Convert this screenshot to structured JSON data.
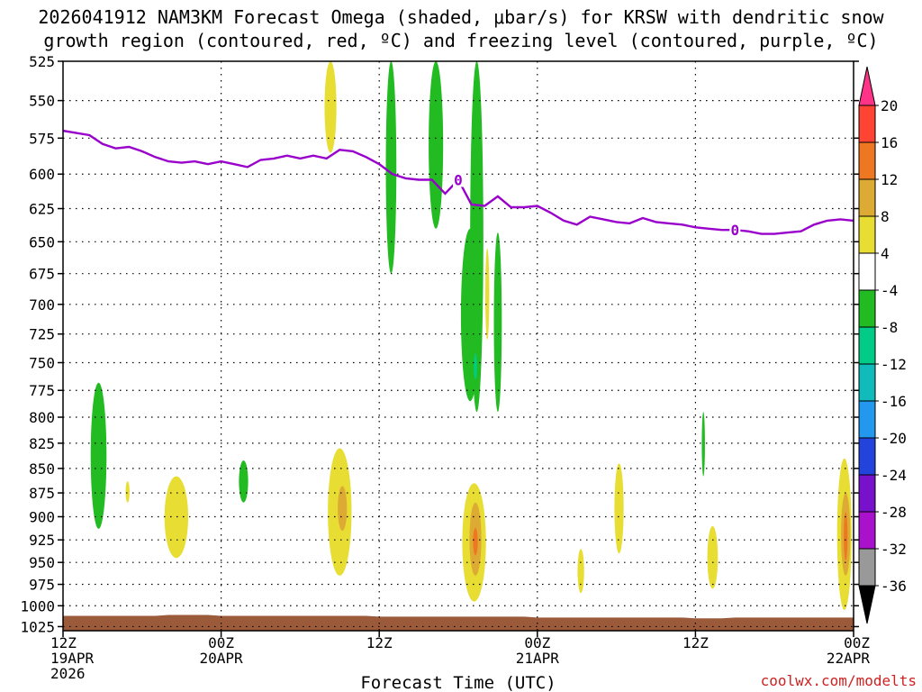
{
  "chart_data": {
    "type": "contour",
    "title_line1": "2026041912 NAM3KM Forecast Omega (shaded, μbar/s) for KRSW with dendritic snow",
    "title_line2": "growth region (contoured, red, ºC) and freezing level (contoured, purple, ºC)",
    "xlabel": "Forecast Time (UTC)",
    "credit": "coolwx.com/modelts",
    "xlim_hours": [
      0,
      60
    ],
    "ylim_mb": [
      525,
      1030
    ],
    "y_ticks": [
      525,
      550,
      575,
      600,
      625,
      650,
      675,
      700,
      725,
      750,
      775,
      800,
      825,
      850,
      875,
      900,
      925,
      950,
      975,
      1000,
      1025
    ],
    "x_ticks": [
      {
        "hour": 0,
        "l1": "12Z",
        "l2": "19APR",
        "l3": "2026"
      },
      {
        "hour": 12,
        "l1": "00Z",
        "l2": "20APR",
        "l3": ""
      },
      {
        "hour": 24,
        "l1": "12Z",
        "l2": "",
        "l3": ""
      },
      {
        "hour": 36,
        "l1": "00Z",
        "l2": "21APR",
        "l3": ""
      },
      {
        "hour": 48,
        "l1": "12Z",
        "l2": "",
        "l3": ""
      },
      {
        "hour": 60,
        "l1": "00Z",
        "l2": "22APR",
        "l3": ""
      }
    ],
    "colorbar": {
      "labels": [
        "20",
        "16",
        "12",
        "8",
        "4",
        "-4",
        "-8",
        "-12",
        "-16",
        "-20",
        "-24",
        "-28",
        "-32",
        "-36"
      ],
      "colors": [
        "#ff3388",
        "#ff4433",
        "#ee7722",
        "#ddaa33",
        "#e8dd33",
        "#ffffff",
        "#22bb22",
        "#00cc88",
        "#11bbbb",
        "#2299ee",
        "#2244dd",
        "#7711cc",
        "#aa11cc",
        "#999999",
        "#000000"
      ]
    },
    "freezing_level": {
      "label": "0",
      "color": "#9900cc",
      "label_points": [
        {
          "hour": 30,
          "mb": 604
        },
        {
          "hour": 51,
          "mb": 641
        }
      ],
      "points": [
        [
          0,
          570
        ],
        [
          2,
          573
        ],
        [
          3,
          579
        ],
        [
          4,
          582
        ],
        [
          5,
          581
        ],
        [
          6,
          584
        ],
        [
          7,
          588
        ],
        [
          8,
          591
        ],
        [
          9,
          592
        ],
        [
          10,
          591
        ],
        [
          11,
          593
        ],
        [
          12,
          591
        ],
        [
          13,
          593
        ],
        [
          14,
          595
        ],
        [
          15,
          590
        ],
        [
          16,
          589
        ],
        [
          17,
          587
        ],
        [
          18,
          589
        ],
        [
          19,
          587
        ],
        [
          20,
          589
        ],
        [
          21,
          583
        ],
        [
          22,
          584
        ],
        [
          23,
          588
        ],
        [
          24,
          593
        ],
        [
          25,
          600
        ],
        [
          26,
          603
        ],
        [
          27,
          604
        ],
        [
          28,
          604
        ],
        [
          29,
          614
        ],
        [
          30,
          604
        ],
        [
          31,
          622
        ],
        [
          32,
          623
        ],
        [
          33,
          616
        ],
        [
          34,
          624
        ],
        [
          35,
          624
        ],
        [
          36,
          623
        ],
        [
          37,
          628
        ],
        [
          38,
          634
        ],
        [
          39,
          637
        ],
        [
          40,
          631
        ],
        [
          41,
          633
        ],
        [
          42,
          635
        ],
        [
          43,
          636
        ],
        [
          44,
          632
        ],
        [
          45,
          635
        ],
        [
          46,
          636
        ],
        [
          47,
          637
        ],
        [
          48,
          639
        ],
        [
          49,
          640
        ],
        [
          50,
          641
        ],
        [
          51,
          641
        ],
        [
          52,
          642
        ],
        [
          53,
          644
        ],
        [
          54,
          644
        ],
        [
          55,
          643
        ],
        [
          56,
          642
        ],
        [
          57,
          637
        ],
        [
          58,
          634
        ],
        [
          59,
          633
        ],
        [
          60,
          634
        ]
      ]
    },
    "omega_regions": [
      {
        "name": "green-hr2",
        "value": "-4 to -8",
        "color": "#22bb22",
        "cx": 2.7,
        "top": 768,
        "bot": 913,
        "hw": 0.6
      },
      {
        "name": "yellow-hr5",
        "value": "4 to 8",
        "color": "#e8dd33",
        "cx": 4.9,
        "top": 863,
        "bot": 885,
        "hw": 0.15
      },
      {
        "name": "yellow-hr8",
        "value": "4 to 8",
        "color": "#e8dd33",
        "cx": 8.6,
        "top": 858,
        "bot": 945,
        "hw": 0.9
      },
      {
        "name": "green-hr13",
        "value": "-4 to -8",
        "color": "#22bb22",
        "cx": 13.7,
        "top": 842,
        "bot": 885,
        "hw": 0.35
      },
      {
        "name": "yellow-hr19-upper",
        "value": "4 to 8",
        "color": "#e8dd33",
        "cx": 20.3,
        "top": 525,
        "bot": 585,
        "hw": 0.45
      },
      {
        "name": "yellow-hr21",
        "value": "4 to 8",
        "color": "#e8dd33",
        "cx": 21.0,
        "top": 830,
        "bot": 965,
        "hw": 0.9
      },
      {
        "name": "orange-hr21",
        "value": "8 to 12",
        "color": "#ddaa33",
        "cx": 21.2,
        "top": 868,
        "bot": 915,
        "hw": 0.35
      },
      {
        "name": "green-hr24",
        "value": "-4 to -8",
        "color": "#22bb22",
        "cx": 24.9,
        "top": 525,
        "bot": 675,
        "hw": 0.4
      },
      {
        "name": "green-hr28",
        "value": "-4 to -8",
        "color": "#22bb22",
        "cx": 28.3,
        "top": 525,
        "bot": 640,
        "hw": 0.55
      },
      {
        "name": "green-hr31",
        "value": "-4 to -8",
        "color": "#22bb22",
        "cx": 31.4,
        "top": 525,
        "bot": 795,
        "hw": 0.5
      },
      {
        "name": "green-hr30-mid",
        "value": "-4 to -8",
        "color": "#22bb22",
        "cx": 30.9,
        "top": 640,
        "bot": 785,
        "hw": 0.7
      },
      {
        "name": "teal-hr31",
        "value": "-8 to -12",
        "color": "#00cc88",
        "cx": 31.3,
        "top": 742,
        "bot": 765,
        "hw": 0.12
      },
      {
        "name": "yellow-hr32-mid",
        "value": "4 to 8",
        "color": "#e8dd33",
        "cx": 32.2,
        "top": 655,
        "bot": 730,
        "hw": 0.15
      },
      {
        "name": "green-hr33",
        "value": "-4 to -8",
        "color": "#22bb22",
        "cx": 33.0,
        "top": 643,
        "bot": 795,
        "hw": 0.3
      },
      {
        "name": "yellow-hr31-low",
        "value": "4 to 8",
        "color": "#e8dd33",
        "cx": 31.2,
        "top": 865,
        "bot": 995,
        "hw": 0.9
      },
      {
        "name": "orange-hr31",
        "value": "8 to 12",
        "color": "#ddaa33",
        "cx": 31.3,
        "top": 885,
        "bot": 965,
        "hw": 0.45
      },
      {
        "name": "darkorange-hr31",
        "value": "12 to 16",
        "color": "#ee7722",
        "cx": 31.3,
        "top": 912,
        "bot": 942,
        "hw": 0.18
      },
      {
        "name": "yellow-hr39",
        "value": "4 to 8",
        "color": "#e8dd33",
        "cx": 39.3,
        "top": 935,
        "bot": 985,
        "hw": 0.25
      },
      {
        "name": "yellow-hr42",
        "value": "4 to 8",
        "color": "#e8dd33",
        "cx": 42.2,
        "top": 845,
        "bot": 940,
        "hw": 0.35
      },
      {
        "name": "green-hr48",
        "value": "-4 to -8",
        "color": "#22bb22",
        "cx": 48.6,
        "top": 795,
        "bot": 858,
        "hw": 0.12
      },
      {
        "name": "yellow-hr49",
        "value": "4 to 8",
        "color": "#e8dd33",
        "cx": 49.3,
        "top": 910,
        "bot": 980,
        "hw": 0.4
      },
      {
        "name": "yellow-hr59",
        "value": "4 to 8",
        "color": "#e8dd33",
        "cx": 59.3,
        "top": 840,
        "bot": 1005,
        "hw": 0.55
      },
      {
        "name": "orange-hr59",
        "value": "8 to 12",
        "color": "#ddaa33",
        "cx": 59.4,
        "top": 875,
        "bot": 965,
        "hw": 0.35
      },
      {
        "name": "darkorange-hr59",
        "value": "12 to 16",
        "color": "#ee7722",
        "cx": 59.4,
        "top": 895,
        "bot": 948,
        "hw": 0.14
      }
    ],
    "ground_surface": {
      "color": "#9b5a3a",
      "points": [
        [
          0,
          1012
        ],
        [
          2,
          1012
        ],
        [
          3,
          1012
        ],
        [
          4,
          1012
        ],
        [
          5,
          1012
        ],
        [
          6,
          1012
        ],
        [
          7,
          1012
        ],
        [
          8,
          1011
        ],
        [
          9,
          1011
        ],
        [
          10,
          1011
        ],
        [
          11,
          1011
        ],
        [
          12,
          1012
        ],
        [
          13,
          1012
        ],
        [
          14,
          1012
        ],
        [
          15,
          1012
        ],
        [
          16,
          1012
        ],
        [
          17,
          1012
        ],
        [
          18,
          1012
        ],
        [
          19,
          1012
        ],
        [
          20,
          1012
        ],
        [
          21,
          1012
        ],
        [
          22,
          1012
        ],
        [
          23,
          1012
        ],
        [
          24,
          1013
        ],
        [
          25,
          1013
        ],
        [
          26,
          1013
        ],
        [
          27,
          1013
        ],
        [
          28,
          1013
        ],
        [
          29,
          1013
        ],
        [
          30,
          1013
        ],
        [
          31,
          1013
        ],
        [
          32,
          1013
        ],
        [
          33,
          1013
        ],
        [
          34,
          1013
        ],
        [
          35,
          1013
        ],
        [
          36,
          1014
        ],
        [
          37,
          1014
        ],
        [
          38,
          1014
        ],
        [
          39,
          1014
        ],
        [
          40,
          1014
        ],
        [
          41,
          1014
        ],
        [
          42,
          1014
        ],
        [
          43,
          1014
        ],
        [
          44,
          1014
        ],
        [
          45,
          1014
        ],
        [
          46,
          1014
        ],
        [
          47,
          1014
        ],
        [
          48,
          1015
        ],
        [
          49,
          1015
        ],
        [
          50,
          1015
        ],
        [
          51,
          1014
        ],
        [
          52,
          1014
        ],
        [
          53,
          1014
        ],
        [
          54,
          1014
        ],
        [
          55,
          1014
        ],
        [
          56,
          1014
        ],
        [
          57,
          1014
        ],
        [
          58,
          1014
        ],
        [
          59,
          1014
        ],
        [
          60,
          1014
        ]
      ]
    }
  }
}
